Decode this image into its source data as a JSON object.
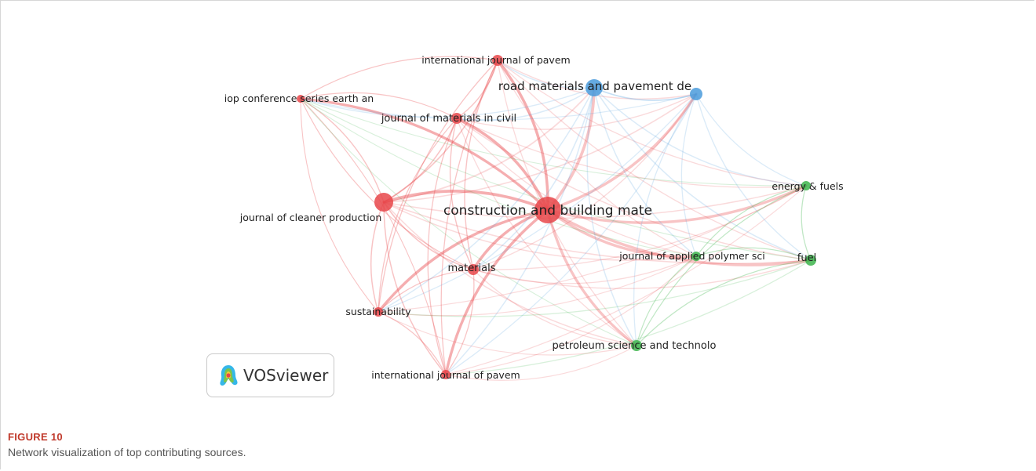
{
  "figure": {
    "label": "FIGURE 10",
    "caption": "Network visualization of top contributing sources."
  },
  "logo": {
    "brand": "VOSviewer",
    "icon": "vosviewer-logo-icon"
  },
  "colors": {
    "cluster1": "#e8474a",
    "cluster2": "#4a9bdc",
    "cluster3": "#3cb44b",
    "label": "#1f1f1f",
    "caption_label": "#c0392b"
  },
  "nodes": [
    {
      "id": "cbm",
      "label": "construction and building mate",
      "cluster": 1,
      "weight": 10
    },
    {
      "id": "jcp",
      "label": "journal of cleaner production",
      "cluster": 1,
      "weight": 6
    },
    {
      "id": "jmc",
      "label": "journal of materials in civil",
      "cluster": 1,
      "weight": 4
    },
    {
      "id": "ijp1",
      "label": "international journal of pavem",
      "cluster": 1,
      "weight": 4
    },
    {
      "id": "ijp2",
      "label": "international journal of pavem",
      "cluster": 1,
      "weight": 3
    },
    {
      "id": "iop",
      "label": "iop conference series earth an",
      "cluster": 1,
      "weight": 2
    },
    {
      "id": "mat",
      "label": "materials",
      "cluster": 1,
      "weight": 4
    },
    {
      "id": "sus",
      "label": "sustainability",
      "cluster": 1,
      "weight": 3
    },
    {
      "id": "rmpd",
      "label": "road materials and pavement de",
      "cluster": 2,
      "weight": 6
    },
    {
      "id": "blue2",
      "label": "",
      "cluster": 2,
      "weight": 4
    },
    {
      "id": "ef",
      "label": "energy & fuels",
      "cluster": 3,
      "weight": 3
    },
    {
      "id": "fuel",
      "label": "fuel",
      "cluster": 3,
      "weight": 4
    },
    {
      "id": "japs",
      "label": "journal of applied polymer sci",
      "cluster": 3,
      "weight": 3
    },
    {
      "id": "pst",
      "label": "petroleum science and technolo",
      "cluster": 3,
      "weight": 3
    }
  ]
}
